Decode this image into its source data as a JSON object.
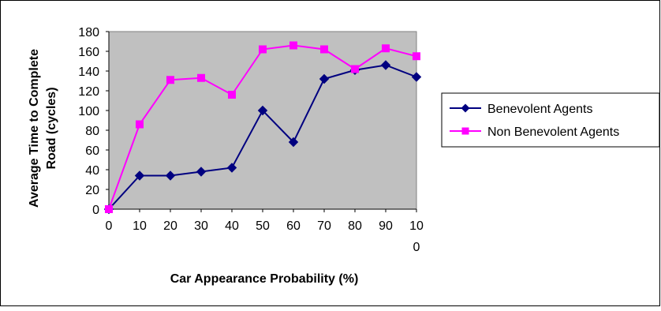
{
  "chart_data": {
    "type": "line",
    "title": "",
    "xlabel": "Car Appearance Probability  (%)",
    "ylabel_line1": "Average Time to Complete",
    "ylabel_line2": "Road (cycles)",
    "x": [
      0,
      10,
      20,
      30,
      40,
      50,
      60,
      70,
      80,
      90,
      100
    ],
    "x_tick_labels": [
      "0",
      "10",
      "20",
      "30",
      "40",
      "50",
      "60",
      "70",
      "80",
      "90",
      "10\n0"
    ],
    "y_ticks": [
      0,
      20,
      40,
      60,
      80,
      100,
      120,
      140,
      160,
      180
    ],
    "ylim": [
      0,
      180
    ],
    "grid": false,
    "plot_background": "#c0c0c0",
    "legend_position": "right",
    "series": [
      {
        "name": "Benevolent Agents",
        "color": "#000080",
        "marker": "diamond",
        "values": [
          0,
          34,
          34,
          38,
          42,
          100,
          68,
          132,
          141,
          146,
          134
        ]
      },
      {
        "name": "Non Benevolent Agents",
        "color": "#ff00ff",
        "marker": "square",
        "values": [
          0,
          86,
          131,
          133,
          116,
          162,
          166,
          162,
          142,
          163,
          155
        ]
      }
    ]
  }
}
